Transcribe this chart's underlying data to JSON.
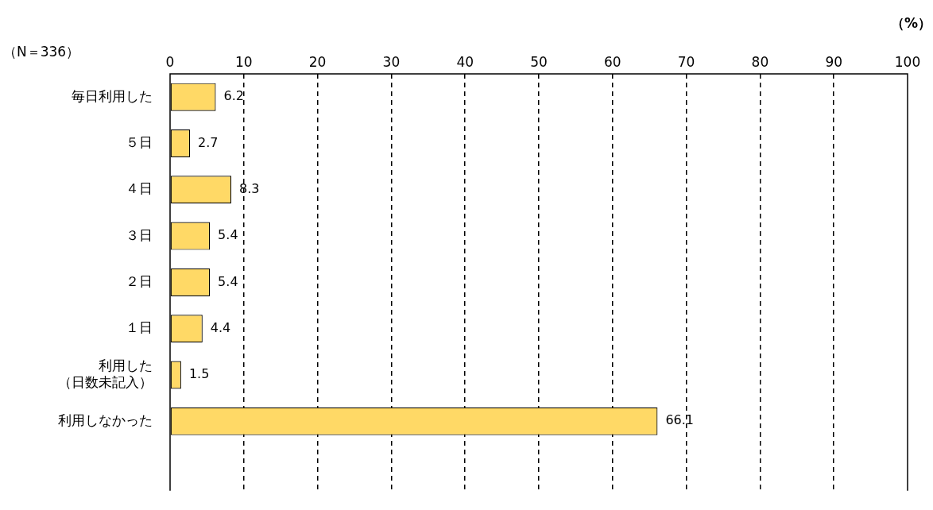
{
  "chart_data": {
    "type": "bar",
    "orientation": "horizontal",
    "categories": [
      "毎日利用した",
      "５日",
      "４日",
      "３日",
      "２日",
      "１日",
      "利用した（日数未記入）",
      "利用しなかった",
      null
    ],
    "values": [
      6.2,
      2.7,
      8.3,
      5.4,
      5.4,
      4.4,
      1.5,
      66.1,
      null
    ],
    "color": "#ffd966",
    "xlim": [
      0,
      100
    ],
    "xticks": [
      0,
      10,
      20,
      30,
      40,
      50,
      60,
      70,
      80,
      90,
      100
    ],
    "xlabel": "（%）",
    "annotations": [
      "（N＝336）"
    ],
    "grid": "x",
    "data_labels": true,
    "legend": false
  }
}
